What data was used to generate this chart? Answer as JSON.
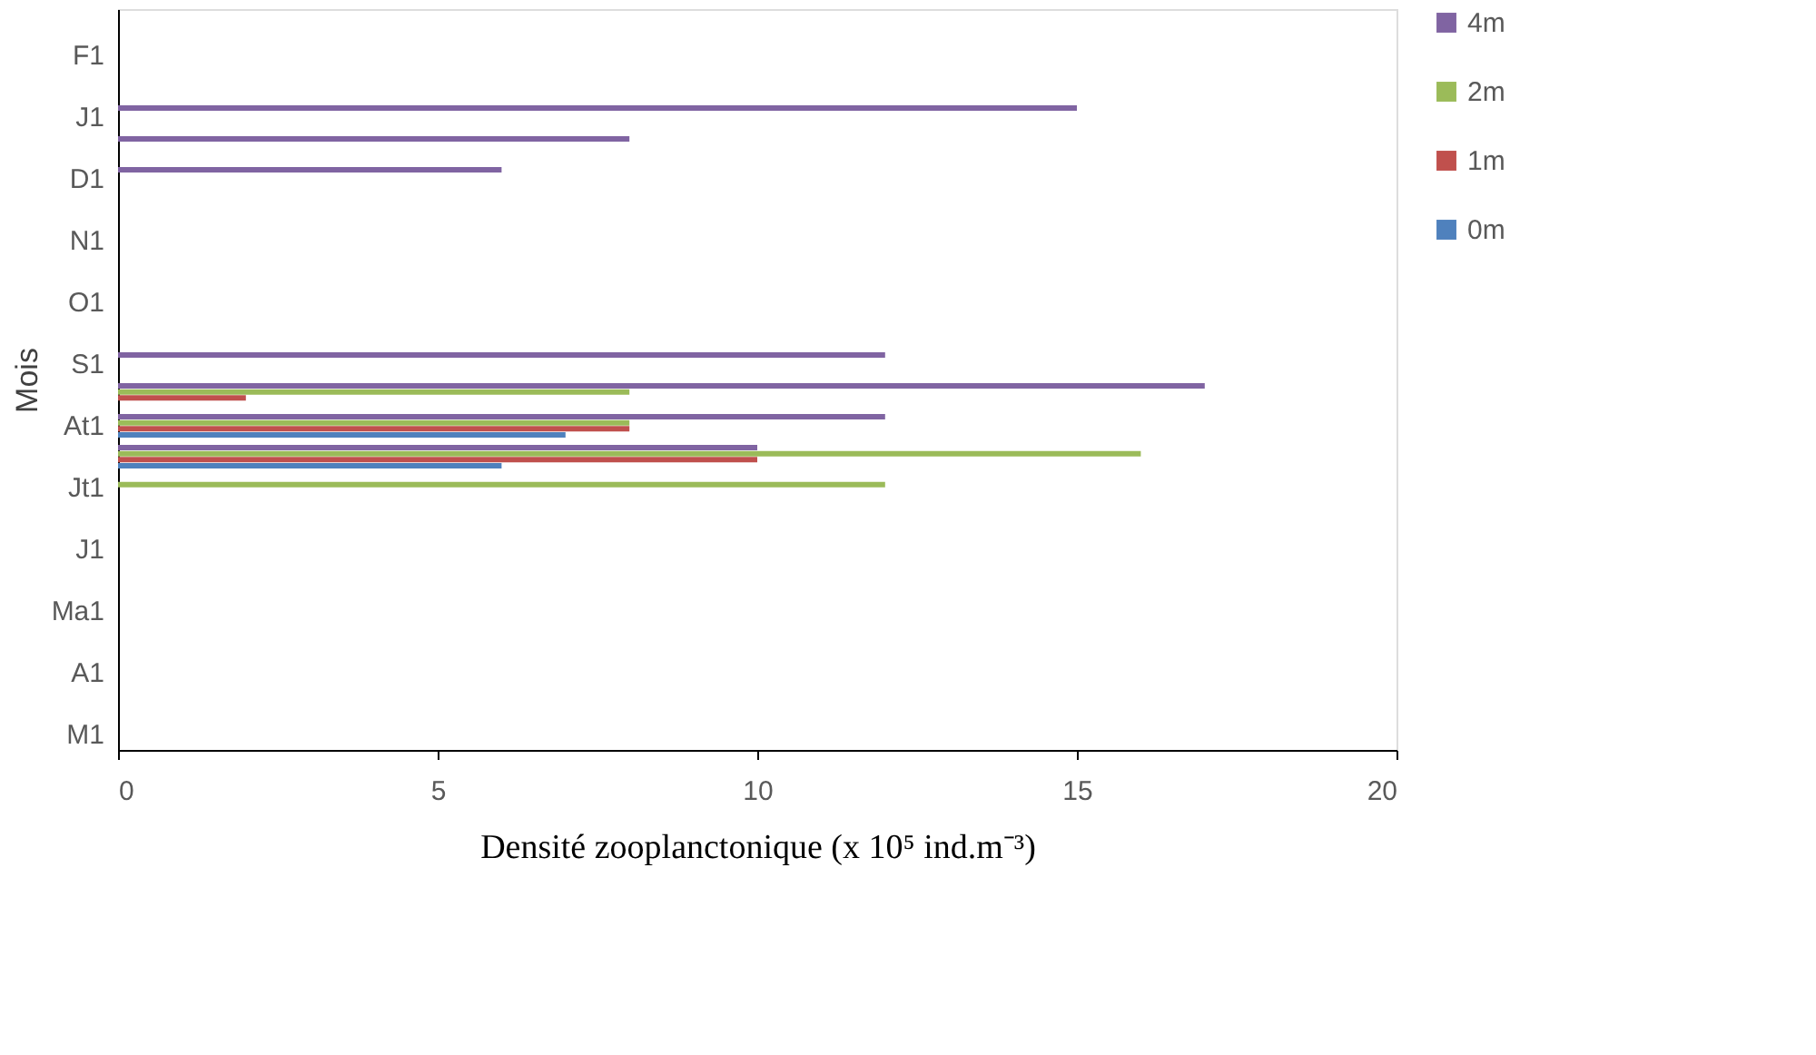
{
  "chart_data": {
    "type": "bar",
    "orientation": "horizontal",
    "xlabel": "Densité zooplanctonique (x 10⁵ ind.m⁻³)",
    "ylabel": "Mois",
    "categories": [
      null,
      "F1",
      null,
      "J1",
      null,
      "D1",
      null,
      "N1",
      null,
      "O1",
      null,
      "S1",
      null,
      "At1",
      null,
      "Jt1",
      null,
      "J1",
      null,
      "Ma1",
      null,
      "A1",
      null,
      "M1"
    ],
    "series": [
      {
        "name": "0m",
        "color": "#4f81bd",
        "values": [
          null,
          null,
          null,
          null,
          null,
          null,
          null,
          null,
          null,
          null,
          null,
          null,
          null,
          7,
          6,
          null,
          null,
          null,
          null,
          null,
          null,
          null,
          null,
          null
        ]
      },
      {
        "name": "1m",
        "color": "#c0504d",
        "values": [
          null,
          null,
          null,
          null,
          null,
          null,
          null,
          null,
          null,
          null,
          null,
          null,
          2,
          8,
          10,
          null,
          null,
          null,
          null,
          null,
          null,
          null,
          null,
          null
        ]
      },
      {
        "name": "2m",
        "color": "#9bbb59",
        "values": [
          null,
          null,
          null,
          null,
          null,
          null,
          null,
          null,
          null,
          null,
          null,
          null,
          8,
          8,
          16,
          12,
          null,
          null,
          null,
          null,
          null,
          null,
          null,
          null
        ]
      },
      {
        "name": "4m",
        "color": "#8064a2",
        "values": [
          null,
          null,
          null,
          15,
          8,
          6,
          null,
          null,
          null,
          null,
          null,
          12,
          17,
          12,
          10,
          null,
          null,
          null,
          null,
          null,
          null,
          null,
          null,
          null
        ]
      }
    ],
    "xlim": [
      0,
      20
    ],
    "xticks": [
      0,
      5,
      10,
      15,
      20
    ],
    "grid": false,
    "legend": "right"
  }
}
